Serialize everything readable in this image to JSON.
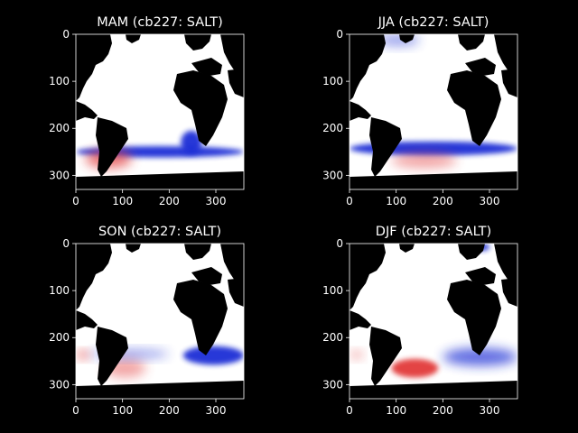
{
  "figure": {
    "background": "#000000",
    "foreground": "#ffffff"
  },
  "colors": {
    "land": "#000000",
    "ocean_neutral": "#ffffff",
    "positive": "#e23b3b",
    "negative": "#1f2fd6"
  },
  "chart_data": [
    {
      "type": "heatmap",
      "title": "MAM (cb227: SALT)",
      "xlim": [
        0,
        360
      ],
      "ylim": [
        330,
        0
      ],
      "xticks": [
        0,
        100,
        200,
        300
      ],
      "yticks": [
        0,
        100,
        200,
        300
      ],
      "xlabel": "",
      "ylabel": "",
      "grid": false,
      "inverted_y": true,
      "colormap": "bwr",
      "anomaly_bands": [
        {
          "sign": "negative",
          "x_range": [
            0,
            360
          ],
          "y_range": [
            238,
            262
          ],
          "strength": "strong"
        },
        {
          "sign": "positive",
          "x_range": [
            20,
            120
          ],
          "y_range": [
            245,
            285
          ],
          "strength": "moderate"
        },
        {
          "sign": "negative",
          "x_range": [
            225,
            270
          ],
          "y_range": [
            205,
            255
          ],
          "strength": "strong"
        }
      ]
    },
    {
      "type": "heatmap",
      "title": "JJA (cb227: SALT)",
      "xlim": [
        0,
        360
      ],
      "ylim": [
        330,
        0
      ],
      "xticks": [
        0,
        100,
        200,
        300
      ],
      "yticks": [
        0,
        100,
        200,
        300
      ],
      "xlabel": "",
      "ylabel": "",
      "grid": false,
      "inverted_y": true,
      "colormap": "bwr",
      "anomaly_bands": [
        {
          "sign": "negative",
          "x_range": [
            0,
            360
          ],
          "y_range": [
            228,
            258
          ],
          "strength": "strong"
        },
        {
          "sign": "positive",
          "x_range": [
            90,
            230
          ],
          "y_range": [
            252,
            285
          ],
          "strength": "weak"
        },
        {
          "sign": "negative",
          "x_range": [
            60,
            150
          ],
          "y_range": [
            0,
            25
          ],
          "strength": "weak"
        }
      ]
    },
    {
      "type": "heatmap",
      "title": "SON (cb227: SALT)",
      "xlim": [
        0,
        360
      ],
      "ylim": [
        330,
        0
      ],
      "xticks": [
        0,
        100,
        200,
        300
      ],
      "yticks": [
        0,
        100,
        200,
        300
      ],
      "xlabel": "",
      "ylabel": "",
      "grid": false,
      "inverted_y": true,
      "colormap": "bwr",
      "anomaly_bands": [
        {
          "sign": "negative",
          "x_range": [
            230,
            360
          ],
          "y_range": [
            218,
            258
          ],
          "strength": "strong"
        },
        {
          "sign": "positive",
          "x_range": [
            0,
            30
          ],
          "y_range": [
            228,
            245
          ],
          "strength": "moderate"
        },
        {
          "sign": "positive",
          "x_range": [
            60,
            150
          ],
          "y_range": [
            245,
            285
          ],
          "strength": "weak"
        },
        {
          "sign": "negative",
          "x_range": [
            30,
            200
          ],
          "y_range": [
            225,
            245
          ],
          "strength": "weak"
        }
      ]
    },
    {
      "type": "heatmap",
      "title": "DJF (cb227: SALT)",
      "xlim": [
        0,
        360
      ],
      "ylim": [
        330,
        0
      ],
      "xticks": [
        0,
        100,
        200,
        300
      ],
      "yticks": [
        0,
        100,
        200,
        300
      ],
      "xlabel": "",
      "ylabel": "",
      "grid": false,
      "inverted_y": true,
      "colormap": "bwr",
      "anomaly_bands": [
        {
          "sign": "positive",
          "x_range": [
            90,
            190
          ],
          "y_range": [
            245,
            285
          ],
          "strength": "strong"
        },
        {
          "sign": "negative",
          "x_range": [
            200,
            360
          ],
          "y_range": [
            222,
            260
          ],
          "strength": "moderate"
        },
        {
          "sign": "negative",
          "x_range": [
            270,
            300
          ],
          "y_range": [
            0,
            15
          ],
          "strength": "strong"
        },
        {
          "sign": "positive",
          "x_range": [
            0,
            30
          ],
          "y_range": [
            228,
            245
          ],
          "strength": "weak"
        }
      ]
    }
  ]
}
